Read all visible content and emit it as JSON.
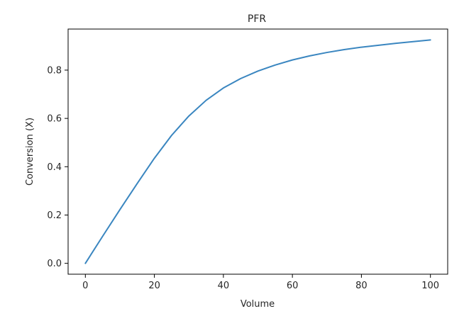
{
  "chart_data": {
    "type": "line",
    "title": "PFR",
    "xlabel": "Volume",
    "ylabel": "Conversion (X)",
    "xlim": [
      -5,
      105
    ],
    "ylim": [
      -0.045,
      0.97
    ],
    "xticks": [
      0,
      20,
      40,
      60,
      80,
      100
    ],
    "yticks": [
      0.0,
      0.2,
      0.4,
      0.6,
      0.8
    ],
    "xtick_labels": [
      "0",
      "20",
      "40",
      "60",
      "80",
      "100"
    ],
    "ytick_labels": [
      "0.0",
      "0.2",
      "0.4",
      "0.6",
      "0.8"
    ],
    "grid": false,
    "series": [
      {
        "color": "#3a86c0",
        "x": [
          0,
          5,
          10,
          15,
          20,
          25,
          30,
          35,
          40,
          45,
          50,
          55,
          60,
          65,
          70,
          75,
          80,
          85,
          90,
          95,
          100
        ],
        "y": [
          0.0,
          0.112,
          0.222,
          0.33,
          0.435,
          0.53,
          0.61,
          0.675,
          0.726,
          0.765,
          0.796,
          0.821,
          0.842,
          0.859,
          0.873,
          0.885,
          0.895,
          0.903,
          0.911,
          0.918,
          0.925
        ]
      }
    ]
  }
}
